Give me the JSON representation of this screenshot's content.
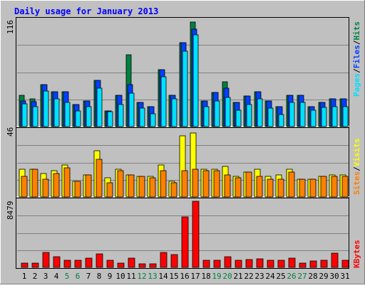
{
  "title": "Daily usage for January 2013",
  "colors": {
    "background": "#C0C0C0",
    "title": "#0000FF",
    "hits": "#008040",
    "files": "#0040FF",
    "pages": "#00E0FF",
    "visits": "#FFFF00",
    "sites": "#FF8000",
    "kbytes": "#FF0000",
    "weekend_label": "#008040",
    "weekday_label": "#000000",
    "grid": "#808080"
  },
  "chart_data": [
    {
      "type": "bar",
      "panel": "hits-files-pages",
      "right_label": {
        "pages": "Pages",
        "sep1": "/",
        "files": "Files",
        "sep2": "/",
        "hits": "Hits"
      },
      "ymax_label": "116",
      "ylim": [
        0,
        116
      ],
      "categories": [
        "1",
        "2",
        "3",
        "4",
        "5",
        "6",
        "7",
        "8",
        "9",
        "10",
        "11",
        "12",
        "13",
        "14",
        "15",
        "16",
        "17",
        "18",
        "19",
        "20",
        "21",
        "22",
        "23",
        "24",
        "25",
        "26",
        "27",
        "28",
        "29",
        "30",
        "31"
      ],
      "weekend_days": [
        "5",
        "6",
        "12",
        "13",
        "19",
        "20",
        "26",
        "27"
      ],
      "series": [
        {
          "name": "Hits",
          "values": [
            34,
            30,
            46,
            38,
            38,
            24,
            28,
            50,
            17,
            34,
            78,
            26,
            22,
            62,
            34,
            91,
            114,
            28,
            37,
            49,
            26,
            33,
            38,
            28,
            22,
            34,
            34,
            22,
            26,
            30,
            30
          ]
        },
        {
          "name": "Files",
          "values": [
            28,
            27,
            46,
            38,
            38,
            24,
            28,
            50,
            17,
            34,
            46,
            26,
            22,
            62,
            34,
            91,
            106,
            28,
            37,
            42,
            26,
            33,
            38,
            28,
            22,
            34,
            34,
            22,
            26,
            30,
            30
          ]
        },
        {
          "name": "Pages",
          "values": [
            25,
            22,
            39,
            30,
            26,
            17,
            22,
            42,
            16,
            24,
            36,
            20,
            14,
            54,
            30,
            82,
            100,
            22,
            28,
            32,
            18,
            24,
            30,
            20,
            13,
            26,
            26,
            18,
            21,
            22,
            22
          ]
        }
      ]
    },
    {
      "type": "bar",
      "panel": "sites-visits",
      "right_label": {
        "sites": "Sites",
        "sep": "/",
        "visits": "Visits"
      },
      "ymax_label": "46",
      "ylim": [
        0,
        46
      ],
      "categories": [
        "1",
        "2",
        "3",
        "4",
        "5",
        "6",
        "7",
        "8",
        "9",
        "10",
        "11",
        "12",
        "13",
        "14",
        "15",
        "16",
        "17",
        "18",
        "19",
        "20",
        "21",
        "22",
        "23",
        "24",
        "25",
        "26",
        "27",
        "28",
        "29",
        "30",
        "31"
      ],
      "series": [
        {
          "name": "Visits",
          "values": [
            19,
            19,
            16,
            18,
            22,
            11,
            15,
            32,
            13,
            19,
            15,
            14,
            14,
            22,
            11,
            42,
            44,
            19,
            19,
            21,
            14,
            17,
            19,
            14,
            15,
            19,
            12,
            12,
            14,
            15,
            15
          ]
        },
        {
          "name": "Sites",
          "values": [
            14,
            19,
            12,
            16,
            20,
            11,
            15,
            26,
            10,
            18,
            15,
            14,
            13,
            18,
            10,
            18,
            19,
            18,
            18,
            15,
            13,
            17,
            14,
            12,
            12,
            17,
            12,
            12,
            14,
            14,
            14
          ]
        }
      ]
    },
    {
      "type": "bar",
      "panel": "kbytes",
      "right_label": {
        "kbytes": "KBytes"
      },
      "ymax_label": "8479",
      "ylim": [
        0,
        8479
      ],
      "categories": [
        "1",
        "2",
        "3",
        "4",
        "5",
        "6",
        "7",
        "8",
        "9",
        "10",
        "11",
        "12",
        "13",
        "14",
        "15",
        "16",
        "17",
        "18",
        "19",
        "20",
        "21",
        "22",
        "23",
        "24",
        "25",
        "26",
        "27",
        "28",
        "29",
        "30",
        "31"
      ],
      "series": [
        {
          "name": "KBytes",
          "values": [
            550,
            550,
            1900,
            1400,
            950,
            900,
            1200,
            1700,
            900,
            550,
            1200,
            500,
            500,
            1900,
            1600,
            6500,
            8479,
            900,
            900,
            1400,
            900,
            1000,
            1100,
            900,
            900,
            1200,
            550,
            850,
            900,
            1800,
            900
          ]
        }
      ]
    }
  ]
}
